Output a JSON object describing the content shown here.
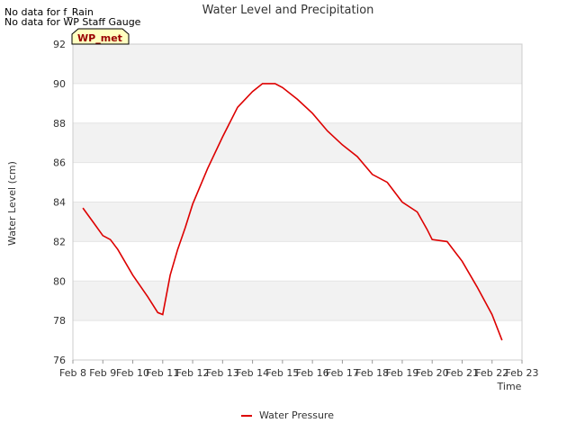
{
  "notes": [
    "No data for f_Rain",
    "No data for WP Staff Gauge"
  ],
  "badge": "WP_met",
  "colors": {
    "band": "#f2f2f2",
    "line": "#dd0000",
    "badge_fill": "#ffffc0",
    "badge_text": "#990000"
  },
  "chart_data": {
    "type": "line",
    "title": "Water Level and Precipitation",
    "xlabel": "Time",
    "ylabel": "Water Level (cm)",
    "ylim": [
      76,
      92
    ],
    "xlim": [
      "Feb 8",
      "Feb 23"
    ],
    "x_ticks": [
      "Feb 8",
      "Feb 9",
      "Feb 10",
      "Feb 11",
      "Feb 12",
      "Feb 13",
      "Feb 14",
      "Feb 15",
      "Feb 16",
      "Feb 17",
      "Feb 18",
      "Feb 19",
      "Feb 20",
      "Feb 21",
      "Feb 22",
      "Feb 23"
    ],
    "y_ticks": [
      "76",
      "78",
      "80",
      "82",
      "84",
      "86",
      "88",
      "90",
      "92"
    ],
    "grid": "horizontal bands",
    "legend_position": "bottom-center",
    "series": [
      {
        "name": "Water Pressure",
        "x": [
          "Feb 8 08:00",
          "Feb 8 16:00",
          "Feb 9 00:00",
          "Feb 9 06:00",
          "Feb 9 12:00",
          "Feb 10 00:00",
          "Feb 10 12:00",
          "Feb 10 20:00",
          "Feb 11 00:00",
          "Feb 11 06:00",
          "Feb 11 12:00",
          "Feb 11 18:00",
          "Feb 12 00:00",
          "Feb 12 12:00",
          "Feb 13 00:00",
          "Feb 13 12:00",
          "Feb 14 00:00",
          "Feb 14 08:00",
          "Feb 14 18:00",
          "Feb 15 00:00",
          "Feb 15 12:00",
          "Feb 16 00:00",
          "Feb 16 12:00",
          "Feb 17 00:00",
          "Feb 17 12:00",
          "Feb 18 00:00",
          "Feb 18 12:00",
          "Feb 19 00:00",
          "Feb 19 12:00",
          "Feb 19 20:00",
          "Feb 20 00:00",
          "Feb 20 12:00",
          "Feb 21 00:00",
          "Feb 21 12:00",
          "Feb 22 00:00",
          "Feb 22 08:00"
        ],
        "y": [
          83.7,
          83.0,
          82.3,
          82.1,
          81.6,
          80.3,
          79.2,
          78.4,
          78.3,
          80.3,
          81.6,
          82.7,
          83.9,
          85.7,
          87.3,
          88.8,
          89.6,
          90.0,
          90.0,
          89.8,
          89.2,
          88.5,
          87.6,
          86.9,
          86.3,
          85.4,
          85.0,
          84.0,
          83.5,
          82.6,
          82.1,
          82.0,
          81.0,
          79.7,
          78.3,
          77.0
        ]
      }
    ]
  }
}
